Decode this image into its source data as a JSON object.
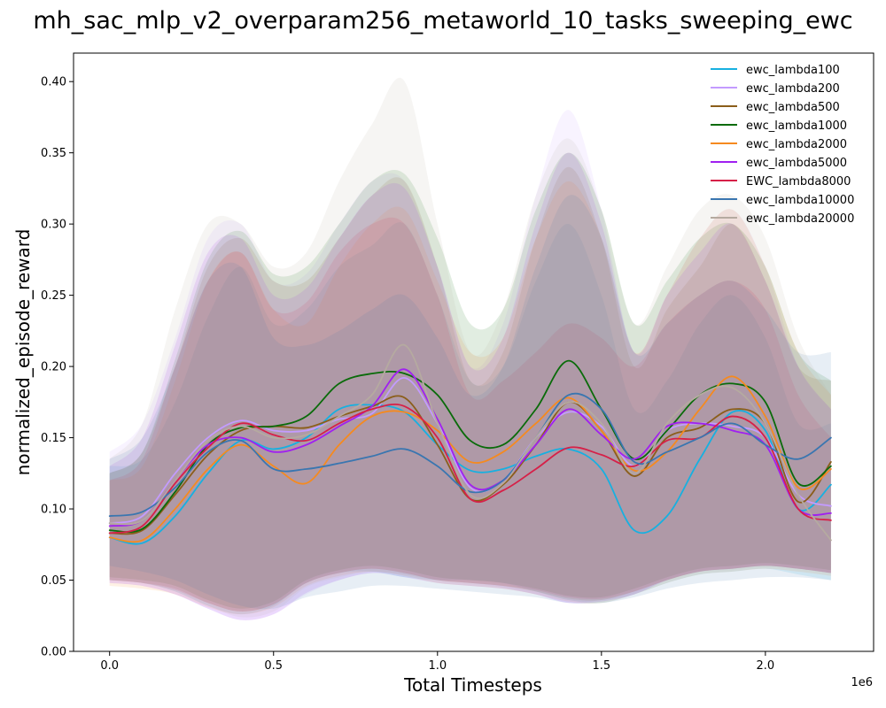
{
  "chart_data": {
    "type": "line",
    "title": "mh_sac_mlp_v2_overparam256_metaworld_10_tasks_sweeping_ewc",
    "xlabel": "Total Timesteps",
    "ylabel": "normalized_episode_reward",
    "x_offset_label": "1e6",
    "xlim": [
      -0.11,
      2.33
    ],
    "ylim": [
      0.0,
      0.42
    ],
    "x_ticks": [
      0.0,
      0.5,
      1.0,
      1.5,
      2.0
    ],
    "x_tick_labels": [
      "0.0",
      "0.5",
      "1.0",
      "1.5",
      "2.0"
    ],
    "y_ticks": [
      0.0,
      0.05,
      0.1,
      0.15,
      0.2,
      0.25,
      0.3,
      0.35,
      0.4
    ],
    "y_tick_labels": [
      "0.00",
      "0.05",
      "0.10",
      "0.15",
      "0.20",
      "0.25",
      "0.30",
      "0.35",
      "0.40"
    ],
    "legend_position": "top-right",
    "grid": false,
    "x": [
      0.0,
      0.1,
      0.2,
      0.3,
      0.4,
      0.5,
      0.6,
      0.7,
      0.8,
      0.9,
      1.0,
      1.1,
      1.2,
      1.3,
      1.4,
      1.5,
      1.6,
      1.7,
      1.8,
      1.9,
      2.0,
      2.1,
      2.2
    ],
    "series": [
      {
        "name": "ewc_lambda100",
        "color": "#17b0e0",
        "values": [
          0.08,
          0.076,
          0.095,
          0.125,
          0.148,
          0.142,
          0.15,
          0.17,
          0.173,
          0.168,
          0.145,
          0.127,
          0.128,
          0.137,
          0.142,
          0.128,
          0.085,
          0.095,
          0.135,
          0.168,
          0.155,
          0.1,
          0.117
        ],
        "upper": [
          0.13,
          0.135,
          0.175,
          0.235,
          0.27,
          0.23,
          0.24,
          0.27,
          0.285,
          0.3,
          0.25,
          0.19,
          0.2,
          0.26,
          0.3,
          0.25,
          0.17,
          0.19,
          0.23,
          0.25,
          0.22,
          0.16,
          0.16
        ],
        "lower": [
          0.05,
          0.048,
          0.042,
          0.032,
          0.026,
          0.032,
          0.048,
          0.055,
          0.056,
          0.052,
          0.05,
          0.05,
          0.048,
          0.042,
          0.036,
          0.034,
          0.04,
          0.048,
          0.054,
          0.056,
          0.058,
          0.054,
          0.05
        ]
      },
      {
        "name": "ewc_lambda200",
        "color": "#c39bff",
        "values": [
          0.09,
          0.095,
          0.125,
          0.15,
          0.162,
          0.155,
          0.155,
          0.163,
          0.167,
          0.192,
          0.16,
          0.115,
          0.12,
          0.15,
          0.168,
          0.158,
          0.13,
          0.155,
          0.16,
          0.158,
          0.15,
          0.11,
          0.102
        ],
        "upper": [
          0.14,
          0.16,
          0.22,
          0.29,
          0.3,
          0.26,
          0.265,
          0.3,
          0.33,
          0.33,
          0.27,
          0.2,
          0.23,
          0.32,
          0.38,
          0.31,
          0.21,
          0.25,
          0.29,
          0.31,
          0.27,
          0.2,
          0.17
        ],
        "lower": [
          0.048,
          0.046,
          0.04,
          0.03,
          0.022,
          0.026,
          0.04,
          0.05,
          0.055,
          0.054,
          0.05,
          0.048,
          0.045,
          0.04,
          0.034,
          0.036,
          0.04,
          0.05,
          0.056,
          0.058,
          0.06,
          0.058,
          0.055
        ]
      },
      {
        "name": "ewc_lambda500",
        "color": "#8b5e1a",
        "values": [
          0.083,
          0.085,
          0.11,
          0.138,
          0.155,
          0.158,
          0.157,
          0.165,
          0.172,
          0.178,
          0.145,
          0.107,
          0.117,
          0.145,
          0.175,
          0.155,
          0.123,
          0.15,
          0.157,
          0.17,
          0.16,
          0.105,
          0.133
        ],
        "upper": [
          0.125,
          0.14,
          0.2,
          0.27,
          0.29,
          0.26,
          0.26,
          0.29,
          0.32,
          0.33,
          0.27,
          0.19,
          0.21,
          0.29,
          0.34,
          0.29,
          0.2,
          0.24,
          0.27,
          0.3,
          0.26,
          0.2,
          0.19
        ],
        "lower": [
          0.05,
          0.048,
          0.044,
          0.034,
          0.028,
          0.033,
          0.048,
          0.055,
          0.058,
          0.055,
          0.05,
          0.048,
          0.046,
          0.042,
          0.037,
          0.036,
          0.042,
          0.05,
          0.056,
          0.058,
          0.06,
          0.058,
          0.055
        ]
      },
      {
        "name": "ewc_lambda1000",
        "color": "#0a6b0a",
        "values": [
          0.085,
          0.086,
          0.112,
          0.145,
          0.157,
          0.158,
          0.165,
          0.188,
          0.195,
          0.195,
          0.18,
          0.148,
          0.145,
          0.17,
          0.204,
          0.17,
          0.135,
          0.155,
          0.18,
          0.188,
          0.175,
          0.118,
          0.13
        ],
        "upper": [
          0.125,
          0.14,
          0.205,
          0.275,
          0.295,
          0.265,
          0.27,
          0.3,
          0.33,
          0.335,
          0.29,
          0.23,
          0.24,
          0.31,
          0.35,
          0.31,
          0.23,
          0.26,
          0.29,
          0.3,
          0.27,
          0.21,
          0.19
        ],
        "lower": [
          0.052,
          0.05,
          0.046,
          0.036,
          0.03,
          0.035,
          0.05,
          0.057,
          0.06,
          0.057,
          0.052,
          0.05,
          0.048,
          0.044,
          0.039,
          0.038,
          0.044,
          0.052,
          0.058,
          0.06,
          0.062,
          0.06,
          0.057
        ]
      },
      {
        "name": "ewc_lambda2000",
        "color": "#f58a1f",
        "values": [
          0.08,
          0.078,
          0.1,
          0.128,
          0.145,
          0.13,
          0.118,
          0.145,
          0.165,
          0.168,
          0.155,
          0.133,
          0.14,
          0.16,
          0.178,
          0.155,
          0.127,
          0.14,
          0.17,
          0.193,
          0.165,
          0.115,
          0.128
        ],
        "upper": [
          0.12,
          0.13,
          0.19,
          0.26,
          0.28,
          0.24,
          0.23,
          0.27,
          0.3,
          0.31,
          0.26,
          0.21,
          0.22,
          0.29,
          0.33,
          0.29,
          0.21,
          0.25,
          0.29,
          0.31,
          0.27,
          0.21,
          0.18
        ],
        "lower": [
          0.046,
          0.044,
          0.04,
          0.031,
          0.026,
          0.031,
          0.046,
          0.053,
          0.056,
          0.053,
          0.048,
          0.046,
          0.044,
          0.04,
          0.035,
          0.034,
          0.04,
          0.048,
          0.054,
          0.056,
          0.058,
          0.056,
          0.053
        ]
      },
      {
        "name": "ewc_lambda5000",
        "color": "#a020f0",
        "values": [
          0.088,
          0.092,
          0.12,
          0.145,
          0.15,
          0.14,
          0.145,
          0.158,
          0.172,
          0.198,
          0.163,
          0.117,
          0.12,
          0.145,
          0.17,
          0.152,
          0.135,
          0.158,
          0.16,
          0.155,
          0.145,
          0.1,
          0.097
        ],
        "upper": [
          0.13,
          0.15,
          0.215,
          0.28,
          0.29,
          0.25,
          0.255,
          0.29,
          0.32,
          0.325,
          0.27,
          0.2,
          0.22,
          0.3,
          0.35,
          0.3,
          0.21,
          0.25,
          0.28,
          0.3,
          0.26,
          0.2,
          0.17
        ],
        "lower": [
          0.048,
          0.046,
          0.04,
          0.03,
          0.022,
          0.026,
          0.041,
          0.05,
          0.055,
          0.052,
          0.048,
          0.046,
          0.044,
          0.04,
          0.034,
          0.035,
          0.04,
          0.05,
          0.056,
          0.058,
          0.06,
          0.058,
          0.055
        ]
      },
      {
        "name": "EWC_lambda8000",
        "color": "#d62048",
        "values": [
          0.083,
          0.088,
          0.118,
          0.143,
          0.16,
          0.152,
          0.148,
          0.16,
          0.17,
          0.172,
          0.15,
          0.107,
          0.113,
          0.128,
          0.143,
          0.138,
          0.13,
          0.148,
          0.15,
          0.165,
          0.15,
          0.1,
          0.092
        ],
        "upper": [
          0.12,
          0.135,
          0.2,
          0.26,
          0.28,
          0.24,
          0.245,
          0.28,
          0.3,
          0.3,
          0.25,
          0.18,
          0.19,
          0.21,
          0.23,
          0.22,
          0.2,
          0.23,
          0.25,
          0.26,
          0.24,
          0.18,
          0.15
        ],
        "lower": [
          0.05,
          0.048,
          0.043,
          0.034,
          0.028,
          0.033,
          0.048,
          0.055,
          0.058,
          0.055,
          0.05,
          0.048,
          0.046,
          0.043,
          0.038,
          0.037,
          0.042,
          0.05,
          0.056,
          0.058,
          0.06,
          0.058,
          0.055
        ]
      },
      {
        "name": "ewc_lambda10000",
        "color": "#3a76b0",
        "values": [
          0.095,
          0.098,
          0.115,
          0.14,
          0.148,
          0.128,
          0.128,
          0.132,
          0.137,
          0.142,
          0.13,
          0.112,
          0.12,
          0.15,
          0.18,
          0.17,
          0.133,
          0.14,
          0.15,
          0.16,
          0.145,
          0.135,
          0.15
        ],
        "upper": [
          0.135,
          0.15,
          0.2,
          0.26,
          0.27,
          0.22,
          0.215,
          0.225,
          0.24,
          0.25,
          0.22,
          0.18,
          0.2,
          0.27,
          0.32,
          0.29,
          0.21,
          0.23,
          0.25,
          0.26,
          0.24,
          0.21,
          0.21
        ],
        "lower": [
          0.06,
          0.056,
          0.05,
          0.04,
          0.032,
          0.03,
          0.038,
          0.042,
          0.046,
          0.046,
          0.044,
          0.042,
          0.04,
          0.038,
          0.034,
          0.034,
          0.038,
          0.044,
          0.048,
          0.05,
          0.052,
          0.052,
          0.05
        ]
      },
      {
        "name": "ewc_lambda20000",
        "color": "#b5aaa0",
        "values": [
          0.09,
          0.092,
          0.12,
          0.148,
          0.158,
          0.15,
          0.152,
          0.165,
          0.18,
          0.215,
          0.16,
          0.11,
          0.118,
          0.15,
          0.175,
          0.16,
          0.125,
          0.16,
          0.18,
          0.185,
          0.16,
          0.11,
          0.078
        ],
        "upper": [
          0.135,
          0.16,
          0.24,
          0.3,
          0.3,
          0.27,
          0.28,
          0.33,
          0.37,
          0.4,
          0.3,
          0.21,
          0.24,
          0.32,
          0.36,
          0.31,
          0.23,
          0.27,
          0.31,
          0.32,
          0.29,
          0.22,
          0.18
        ],
        "lower": [
          0.05,
          0.048,
          0.042,
          0.032,
          0.024,
          0.028,
          0.045,
          0.052,
          0.056,
          0.054,
          0.05,
          0.048,
          0.046,
          0.042,
          0.036,
          0.036,
          0.042,
          0.05,
          0.056,
          0.058,
          0.06,
          0.058,
          0.055
        ]
      }
    ]
  }
}
